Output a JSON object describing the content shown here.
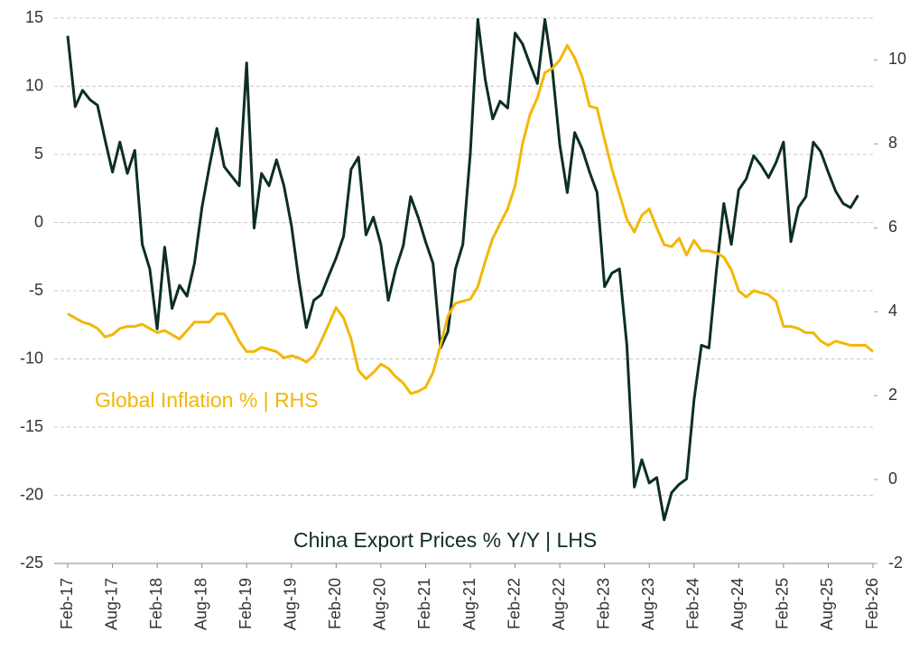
{
  "chart_data": {
    "type": "line",
    "categories": [
      "Feb-17",
      null,
      null,
      null,
      null,
      null,
      "Aug-17",
      null,
      null,
      null,
      null,
      null,
      "Feb-18",
      null,
      null,
      null,
      null,
      null,
      "Aug-18",
      null,
      null,
      null,
      null,
      null,
      "Feb-19",
      null,
      null,
      null,
      null,
      null,
      "Aug-19",
      null,
      null,
      null,
      null,
      null,
      "Feb-20",
      null,
      null,
      null,
      null,
      null,
      "Aug-20",
      null,
      null,
      null,
      null,
      null,
      "Feb-21",
      null,
      null,
      null,
      null,
      null,
      "Aug-21",
      null,
      null,
      null,
      null,
      null,
      "Feb-22",
      null,
      null,
      null,
      null,
      null,
      "Aug-22",
      null,
      null,
      null,
      null,
      null,
      "Feb-23",
      null,
      null,
      null,
      null,
      null,
      "Aug-23",
      null,
      null,
      null,
      null,
      null,
      "Feb-24",
      null,
      null,
      null,
      null,
      null,
      "Aug-24",
      null,
      null,
      null,
      null,
      null,
      "Feb-25",
      null,
      null,
      null,
      null,
      null,
      "Aug-25",
      null,
      null,
      null,
      null,
      null,
      "Feb-26"
    ],
    "series": [
      {
        "name": "China Export Prices % Y/Y | LHS",
        "color": "#0b2e27",
        "axis": "y",
        "values": [
          13.7,
          8.5,
          9.7,
          9.0,
          8.6,
          6.1,
          3.7,
          5.9,
          3.6,
          5.3,
          -1.6,
          -3.4,
          -7.8,
          -1.8,
          -6.3,
          -4.6,
          -5.4,
          -3.0,
          1.1,
          4.1,
          6.9,
          4.1,
          3.4,
          2.7,
          11.7,
          -0.4,
          3.6,
          2.7,
          4.6,
          2.7,
          -0.2,
          -4.2,
          -7.7,
          -5.7,
          -5.3,
          -3.9,
          -2.6,
          -1.0,
          3.9,
          4.8,
          -0.9,
          0.4,
          -1.6,
          -5.7,
          -3.4,
          -1.7,
          1.9,
          0.4,
          -1.4,
          -3.0,
          -9.2,
          -8.0,
          -3.4,
          -1.6,
          5.1,
          14.9,
          10.5,
          7.6,
          8.9,
          8.4,
          13.9,
          13.1,
          11.6,
          10.2,
          14.9,
          11.2,
          5.7,
          2.2,
          6.6,
          5.4,
          3.7,
          2.2,
          -4.7,
          -3.7,
          -3.4,
          -9.0,
          -19.4,
          -17.4,
          -19.1,
          -18.7,
          -21.8,
          -19.8,
          -19.2,
          -18.8,
          -13.0,
          -9.0,
          -9.2,
          -3.5,
          1.4,
          -1.6,
          2.4,
          3.2,
          4.9,
          4.2,
          3.3,
          4.4,
          5.9,
          -1.4,
          1.1,
          1.9,
          5.9,
          5.2,
          3.7,
          2.3,
          1.4,
          1.1,
          2.0,
          null,
          null
        ]
      },
      {
        "name": "Global Inflation % | RHS",
        "color": "#f2b705",
        "axis": "y2",
        "values": [
          3.95,
          3.85,
          3.75,
          3.7,
          3.6,
          3.4,
          3.45,
          3.6,
          3.65,
          3.65,
          3.7,
          3.6,
          3.5,
          3.55,
          3.45,
          3.35,
          3.55,
          3.75,
          3.75,
          3.75,
          3.95,
          3.95,
          3.65,
          3.3,
          3.05,
          3.05,
          3.15,
          3.1,
          3.05,
          2.9,
          2.95,
          2.9,
          2.8,
          2.95,
          3.3,
          3.7,
          4.1,
          3.85,
          3.35,
          2.6,
          2.4,
          2.55,
          2.75,
          2.65,
          2.45,
          2.3,
          2.05,
          2.1,
          2.2,
          2.55,
          3.2,
          3.9,
          4.2,
          4.25,
          4.3,
          4.6,
          5.2,
          5.75,
          6.1,
          6.45,
          7.0,
          8.0,
          8.7,
          9.1,
          9.7,
          9.8,
          10.0,
          10.35,
          10.05,
          9.6,
          8.9,
          8.85,
          8.1,
          7.4,
          6.8,
          6.2,
          5.9,
          6.3,
          6.45,
          6.0,
          5.6,
          5.55,
          5.75,
          5.35,
          5.7,
          5.45,
          5.45,
          5.4,
          5.3,
          5.0,
          4.5,
          4.35,
          4.5,
          4.45,
          4.4,
          4.25,
          3.65,
          3.65,
          3.6,
          3.5,
          3.5,
          3.3,
          3.2,
          3.3,
          3.25,
          3.2,
          3.2,
          3.2,
          3.05
        ]
      }
    ],
    "ylim": [
      -25,
      15
    ],
    "yticks": [
      15,
      10,
      5,
      0,
      -5,
      -10,
      -15,
      -20,
      -25
    ],
    "y2lim": [
      -2,
      11
    ],
    "y2ticks": [
      10,
      8,
      6,
      4,
      2,
      0,
      -2
    ],
    "grid": true
  }
}
